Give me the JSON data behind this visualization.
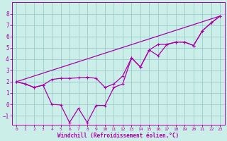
{
  "background_color": "#cceee8",
  "grid_color": "#99cccc",
  "line_color": "#aa00aa",
  "x_data": [
    0,
    1,
    2,
    3,
    4,
    5,
    6,
    7,
    8,
    9,
    10,
    11,
    12,
    13,
    14,
    15,
    16,
    17,
    18,
    19,
    20,
    21,
    22,
    23
  ],
  "y_temp": [
    2.0,
    1.8,
    1.5,
    1.7,
    2.2,
    2.3,
    2.3,
    2.35,
    2.4,
    2.3,
    1.5,
    1.8,
    2.5,
    4.1,
    3.3,
    4.8,
    5.3,
    5.3,
    5.5,
    5.5,
    5.2,
    6.5,
    7.2,
    7.8
  ],
  "y_windchill": [
    2.0,
    1.8,
    1.5,
    1.7,
    0.0,
    -0.05,
    -1.6,
    -0.35,
    -1.6,
    -0.1,
    -0.1,
    1.5,
    1.8,
    4.1,
    3.3,
    4.8,
    4.3,
    5.3,
    5.5,
    5.5,
    5.2,
    6.5,
    7.2,
    7.8
  ],
  "y_linear_start": 2.0,
  "y_linear_end": 7.8,
  "x_linear_start": 0,
  "x_linear_end": 23,
  "xlabel": "Windchill (Refroidissement éolien,°C)",
  "ylim": [
    -1.8,
    9.0
  ],
  "xlim": [
    -0.5,
    23.5
  ],
  "yticks": [
    -1,
    0,
    1,
    2,
    3,
    4,
    5,
    6,
    7,
    8
  ],
  "xticks": [
    0,
    1,
    2,
    3,
    4,
    5,
    6,
    7,
    8,
    9,
    10,
    11,
    12,
    13,
    14,
    15,
    16,
    17,
    18,
    19,
    20,
    21,
    22,
    23
  ],
  "tick_fontsize": 5.0,
  "label_fontsize": 5.5
}
